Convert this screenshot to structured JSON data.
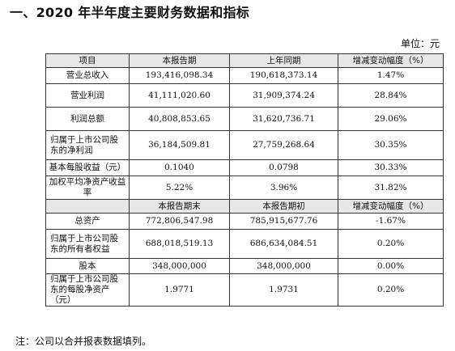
{
  "title": "一、2020 年半年度主要财务数据和指标",
  "unit": "单位：元",
  "table": {
    "header1": [
      "项目",
      "本报告期",
      "上年同期",
      "增减变动幅度（%）"
    ],
    "rows1": [
      [
        "营业总收入",
        "193,416,098.34",
        "190,618,373.14",
        "1.47%"
      ],
      [
        "营业利润",
        "41,111,020.60",
        "31,909,374.24",
        "28.84%"
      ],
      [
        "利润总额",
        "40,808,853.65",
        "31,620,736.71",
        "29.06%"
      ],
      [
        "归属于上市公司股东的净利润",
        "36,184,509.81",
        "27,759,268.64",
        "30.35%"
      ],
      [
        "基本每股收益（元）",
        "0.1040",
        "0.0798",
        "30.33%"
      ],
      [
        "加权平均净资产收益率",
        "5.22%",
        "3.96%",
        "31.82%"
      ]
    ],
    "header2": [
      "",
      "本报告期末",
      "本报告期初",
      "增减变动幅度（%）"
    ],
    "rows2": [
      [
        "总资产",
        "772,806,547.98",
        "785,915,677.76",
        "-1.67%"
      ],
      [
        "归属于上市公司股东的所有者权益",
        "688,018,519.13",
        "686,634,084.51",
        "0.20%"
      ],
      [
        "股本",
        "348,000,000",
        "348,000,000",
        "0.00%"
      ],
      [
        "归属于上市公司股东的每股净资产（元）",
        "1.9771",
        "1.9731",
        "0.20%"
      ]
    ]
  },
  "note": "注：公司以合并报表数据填列。"
}
